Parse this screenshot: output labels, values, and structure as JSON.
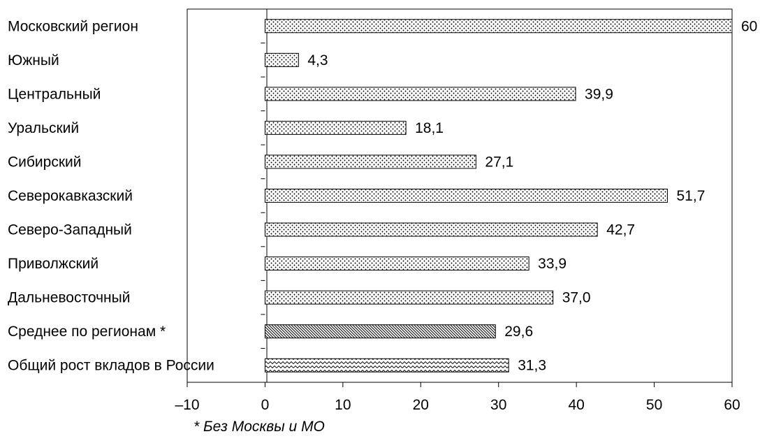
{
  "chart_data": {
    "type": "bar",
    "orientation": "horizontal",
    "categories": [
      "Московский регион",
      "Южный",
      "Центральный",
      "Уральский",
      "Сибирский",
      "Северокавказский",
      "Северо-Западный",
      "Приволжский",
      "Дальневосточный",
      "Среднее по регионам *",
      "Общий рост вкладов в России"
    ],
    "values": [
      60,
      4.3,
      39.9,
      18.1,
      27.1,
      51.7,
      42.7,
      33.9,
      37.0,
      29.6,
      31.3
    ],
    "value_labels": [
      "60",
      "4,3",
      "39,9",
      "18,1",
      "27,1",
      "51,7",
      "42,7",
      "33,9",
      "37,0",
      "29,6",
      "31,3"
    ],
    "bar_patterns": [
      "dots",
      "dots",
      "dots",
      "dots",
      "dots",
      "dots",
      "dots",
      "dots",
      "dots",
      "diagonal",
      "wave"
    ],
    "xlim": [
      -10,
      60
    ],
    "xticks": [
      -10,
      0,
      10,
      20,
      30,
      40,
      50,
      60
    ],
    "xtick_labels": [
      "–10",
      "0",
      "10",
      "20",
      "30",
      "40",
      "50",
      "60"
    ],
    "grid": false,
    "footnote": "* Без Москвы и МО"
  }
}
